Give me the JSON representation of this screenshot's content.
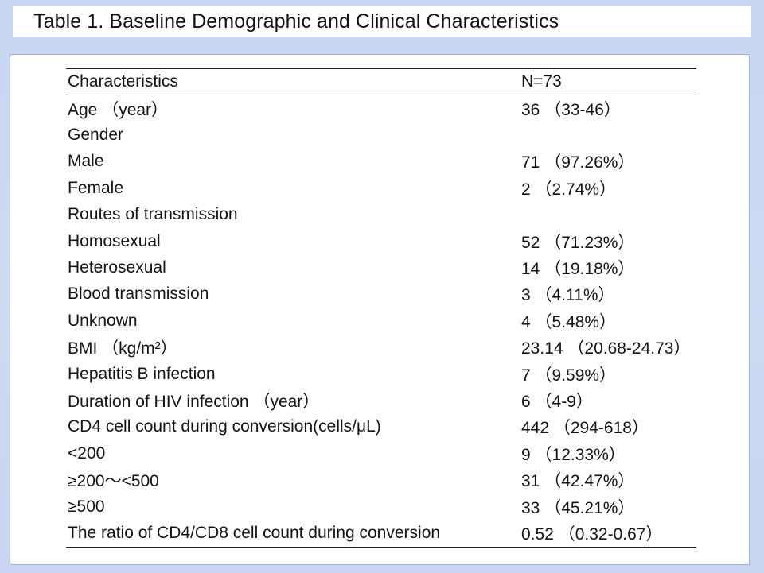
{
  "title": "Table 1. Baseline Demographic and Clinical Characteristics",
  "table": {
    "headers": [
      "Characteristics",
      "N=73"
    ],
    "rows": [
      {
        "label": "Age （year）",
        "value": "36 （33-46）"
      },
      {
        "label": "Gender",
        "value": ""
      },
      {
        "label": "Male",
        "value": "71 （97.26%）"
      },
      {
        "label": "Female",
        "value": "2 （2.74%）"
      },
      {
        "label": "Routes of transmission",
        "value": ""
      },
      {
        "label": "Homosexual",
        "value": "52 （71.23%）"
      },
      {
        "label": "Heterosexual",
        "value": "14 （19.18%）"
      },
      {
        "label": "Blood transmission",
        "value": "3 （4.11%）"
      },
      {
        "label": "Unknown",
        "value": "4 （5.48%）"
      },
      {
        "label": "BMI （kg/m²）",
        "value": "23.14 （20.68-24.73）"
      },
      {
        "label": "Hepatitis B infection",
        "value": "7 （9.59%）"
      },
      {
        "label": "Duration of HIV infection （year）",
        "value": "6 （4-9）"
      },
      {
        "label": "CD4 cell count during conversion(cells/μL)",
        "value": "442 （294-618）"
      },
      {
        "label": "<200",
        "value": "9 （12.33%）"
      },
      {
        "label": "≥200～<500",
        "value": "31 （42.47%）"
      },
      {
        "label": "≥500",
        "value": "33 （45.21%）"
      },
      {
        "label": "The ratio of CD4/CD8 cell count during conversion",
        "value": "0.52 （0.32-0.67）"
      }
    ]
  }
}
